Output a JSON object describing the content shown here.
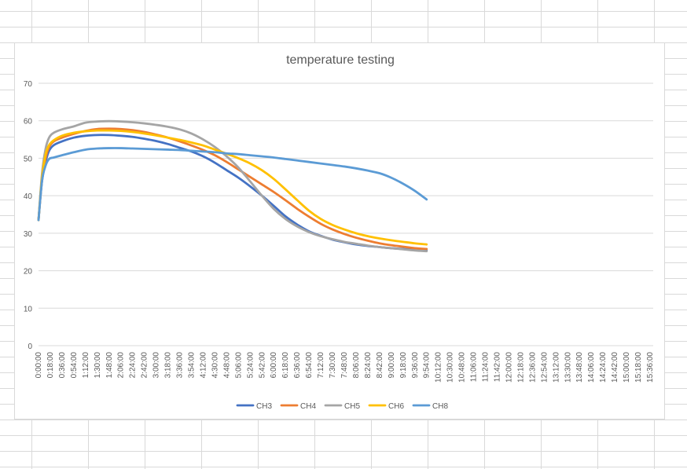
{
  "chart_data": {
    "type": "line",
    "title": "temperature testing",
    "xlabel": "",
    "ylabel": "",
    "ylim": [
      0,
      70
    ],
    "yticks": [
      0,
      10,
      20,
      30,
      40,
      50,
      60,
      70
    ],
    "grid": true,
    "legend_position": "bottom",
    "categories": [
      "0:00:00",
      "0:18:00",
      "0:36:00",
      "0:54:00",
      "1:12:00",
      "1:30:00",
      "1:48:00",
      "2:06:00",
      "2:24:00",
      "2:42:00",
      "3:00:00",
      "3:18:00",
      "3:36:00",
      "3:54:00",
      "4:12:00",
      "4:30:00",
      "4:48:00",
      "5:06:00",
      "5:24:00",
      "5:42:00",
      "6:00:00",
      "6:18:00",
      "6:36:00",
      "6:54:00",
      "7:12:00",
      "7:30:00",
      "7:48:00",
      "8:06:00",
      "8:24:00",
      "8:42:00",
      "9:00:00",
      "9:18:00",
      "9:36:00",
      "9:54:00",
      "10:12:00",
      "10:30:00",
      "10:48:00",
      "11:06:00",
      "11:24:00",
      "11:42:00",
      "12:00:00",
      "12:18:00",
      "12:36:00",
      "12:54:00",
      "13:12:00",
      "13:30:00",
      "13:48:00",
      "14:06:00",
      "14:24:00",
      "14:42:00",
      "15:00:00",
      "15:18:00",
      "15:36:00"
    ],
    "series": [
      {
        "name": "CH3",
        "color": "#4472C4",
        "values": [
          [
            0,
            33.5
          ],
          [
            0.3,
            44
          ],
          [
            0.6,
            49
          ],
          [
            0.9,
            52
          ],
          [
            1.3,
            53.5
          ],
          [
            2,
            54.5
          ],
          [
            3,
            55.5
          ],
          [
            4,
            56
          ],
          [
            5,
            56.2
          ],
          [
            6,
            56.2
          ],
          [
            7,
            56
          ],
          [
            8,
            55.7
          ],
          [
            9,
            55.2
          ],
          [
            10,
            54.6
          ],
          [
            11,
            53.8
          ],
          [
            12,
            52.8
          ],
          [
            13,
            51.8
          ],
          [
            14,
            50.5
          ],
          [
            15,
            48.8
          ],
          [
            16,
            46.8
          ],
          [
            17,
            44.8
          ],
          [
            18,
            42.5
          ],
          [
            19,
            40
          ],
          [
            20,
            37.3
          ],
          [
            21,
            34.5
          ],
          [
            22,
            32.3
          ],
          [
            23,
            30.5
          ],
          [
            24,
            29.3
          ],
          [
            25,
            28.3
          ],
          [
            26,
            27.6
          ],
          [
            27,
            27
          ],
          [
            28,
            26.6
          ],
          [
            29,
            26.3
          ],
          [
            30,
            26
          ],
          [
            31,
            25.8
          ],
          [
            32,
            25.6
          ],
          [
            33,
            25.4
          ]
        ]
      },
      {
        "name": "CH4",
        "color": "#ED7D31",
        "values": [
          [
            0,
            33.5
          ],
          [
            0.3,
            44.5
          ],
          [
            0.6,
            50
          ],
          [
            0.9,
            53
          ],
          [
            1.3,
            54.5
          ],
          [
            2,
            55.5
          ],
          [
            3,
            56.5
          ],
          [
            4,
            57.3
          ],
          [
            5,
            57.8
          ],
          [
            6,
            57.9
          ],
          [
            7,
            57.8
          ],
          [
            8,
            57.5
          ],
          [
            9,
            57
          ],
          [
            10,
            56.3
          ],
          [
            11,
            55.5
          ],
          [
            12,
            54.5
          ],
          [
            13,
            53.4
          ],
          [
            14,
            52.2
          ],
          [
            15,
            50.8
          ],
          [
            16,
            49
          ],
          [
            17,
            47
          ],
          [
            18,
            45
          ],
          [
            19,
            43
          ],
          [
            20,
            41
          ],
          [
            21,
            38.8
          ],
          [
            22,
            36.5
          ],
          [
            23,
            34.4
          ],
          [
            24,
            32.5
          ],
          [
            25,
            31
          ],
          [
            26,
            29.8
          ],
          [
            27,
            28.8
          ],
          [
            28,
            28
          ],
          [
            29,
            27.3
          ],
          [
            30,
            26.8
          ],
          [
            31,
            26.4
          ],
          [
            32,
            26
          ],
          [
            33,
            25.8
          ]
        ]
      },
      {
        "name": "CH5",
        "color": "#A5A5A5",
        "values": [
          [
            0,
            33.5
          ],
          [
            0.3,
            46
          ],
          [
            0.6,
            52.5
          ],
          [
            0.9,
            55.5
          ],
          [
            1.3,
            56.8
          ],
          [
            2,
            57.7
          ],
          [
            3,
            58.5
          ],
          [
            4,
            59.5
          ],
          [
            5,
            59.8
          ],
          [
            6,
            59.9
          ],
          [
            7,
            59.8
          ],
          [
            8,
            59.6
          ],
          [
            9,
            59.3
          ],
          [
            10,
            58.9
          ],
          [
            11,
            58.4
          ],
          [
            12,
            57.7
          ],
          [
            13,
            56.6
          ],
          [
            14,
            55
          ],
          [
            15,
            53
          ],
          [
            16,
            50.5
          ],
          [
            17,
            47.5
          ],
          [
            18,
            43.8
          ],
          [
            19,
            40
          ],
          [
            20,
            36.5
          ],
          [
            21,
            33.8
          ],
          [
            22,
            31.8
          ],
          [
            23,
            30.3
          ],
          [
            24,
            29.2
          ],
          [
            25,
            28.4
          ],
          [
            26,
            27.7
          ],
          [
            27,
            27.2
          ],
          [
            28,
            26.7
          ],
          [
            29,
            26.3
          ],
          [
            30,
            26
          ],
          [
            31,
            25.7
          ],
          [
            32,
            25.4
          ],
          [
            33,
            25.2
          ]
        ]
      },
      {
        "name": "CH6",
        "color": "#FFC000",
        "values": [
          [
            0,
            33.5
          ],
          [
            0.3,
            45
          ],
          [
            0.6,
            51
          ],
          [
            0.9,
            53.5
          ],
          [
            1.3,
            54.8
          ],
          [
            2,
            56
          ],
          [
            3,
            56.8
          ],
          [
            4,
            57.2
          ],
          [
            5,
            57.4
          ],
          [
            6,
            57.4
          ],
          [
            7,
            57.3
          ],
          [
            8,
            57
          ],
          [
            9,
            56.6
          ],
          [
            10,
            56.1
          ],
          [
            11,
            55.5
          ],
          [
            12,
            54.9
          ],
          [
            13,
            54.2
          ],
          [
            14,
            53.4
          ],
          [
            15,
            52.3
          ],
          [
            16,
            51.2
          ],
          [
            17,
            50
          ],
          [
            18,
            48.6
          ],
          [
            19,
            46.8
          ],
          [
            20,
            44.5
          ],
          [
            21,
            41.7
          ],
          [
            22,
            38.8
          ],
          [
            23,
            36
          ],
          [
            24,
            33.8
          ],
          [
            25,
            32.2
          ],
          [
            26,
            31
          ],
          [
            27,
            30
          ],
          [
            28,
            29.2
          ],
          [
            29,
            28.6
          ],
          [
            30,
            28.1
          ],
          [
            31,
            27.7
          ],
          [
            32,
            27.3
          ],
          [
            33,
            27
          ]
        ]
      },
      {
        "name": "CH8",
        "color": "#5B9BD5",
        "values": [
          [
            0,
            33.5
          ],
          [
            0.3,
            44
          ],
          [
            0.6,
            48
          ],
          [
            0.9,
            49.8
          ],
          [
            1.3,
            50.2
          ],
          [
            2,
            50.8
          ],
          [
            3,
            51.6
          ],
          [
            4,
            52.3
          ],
          [
            5,
            52.6
          ],
          [
            6,
            52.7
          ],
          [
            7,
            52.7
          ],
          [
            8,
            52.6
          ],
          [
            9,
            52.5
          ],
          [
            10,
            52.4
          ],
          [
            11,
            52.3
          ],
          [
            12,
            52.2
          ],
          [
            13,
            52
          ],
          [
            14,
            51.8
          ],
          [
            15,
            51.6
          ],
          [
            16,
            51.3
          ],
          [
            17,
            51.1
          ],
          [
            18,
            50.8
          ],
          [
            19,
            50.5
          ],
          [
            20,
            50.2
          ],
          [
            21,
            49.8
          ],
          [
            22,
            49.4
          ],
          [
            23,
            49
          ],
          [
            24,
            48.6
          ],
          [
            25,
            48.2
          ],
          [
            26,
            47.8
          ],
          [
            27,
            47.3
          ],
          [
            28,
            46.7
          ],
          [
            29,
            46
          ],
          [
            30,
            44.8
          ],
          [
            31,
            43.2
          ],
          [
            32,
            41.3
          ],
          [
            33,
            39
          ]
        ]
      }
    ]
  }
}
